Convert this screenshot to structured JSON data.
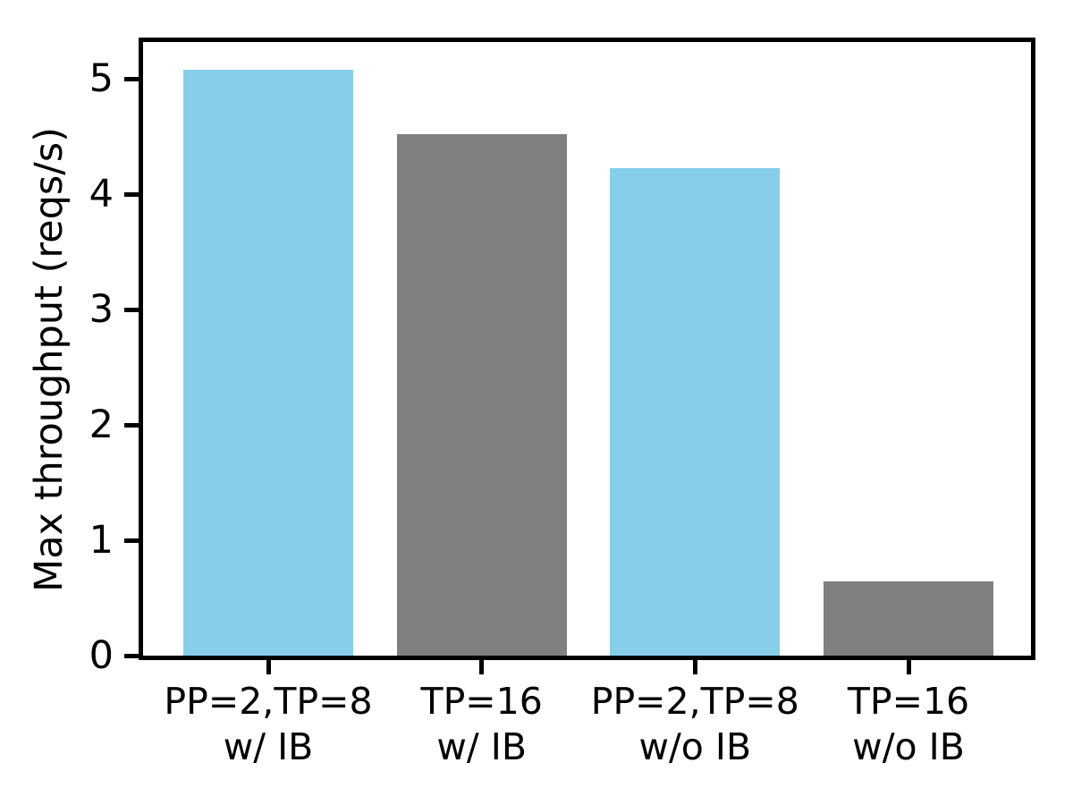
{
  "chart_data": {
    "type": "bar",
    "title": "",
    "xlabel": "",
    "ylabel": "Max throughput (reqs/s)",
    "categories": [
      "PP=2,TP=8\nw/ IB",
      "TP=16\nw/ IB",
      "PP=2,TP=8\nw/o IB",
      "TP=16\nw/o IB"
    ],
    "categories_lines": [
      {
        "line1": "PP=2,TP=8",
        "line2": "w/ IB"
      },
      {
        "line1": "TP=16",
        "line2": "w/ IB"
      },
      {
        "line1": "PP=2,TP=8",
        "line2": "w/o IB"
      },
      {
        "line1": "TP=16",
        "line2": "w/o IB"
      }
    ],
    "values": [
      5.08,
      4.52,
      4.23,
      0.64
    ],
    "bar_colors": [
      "#87CEEB",
      "#808080",
      "#87CEEB",
      "#808080"
    ],
    "yticks": [
      0,
      1,
      2,
      3,
      4,
      5
    ],
    "ylim": [
      0,
      5.32
    ],
    "grid": false,
    "legend": "none",
    "axis_color": "#000000",
    "background_color": "#ffffff"
  }
}
